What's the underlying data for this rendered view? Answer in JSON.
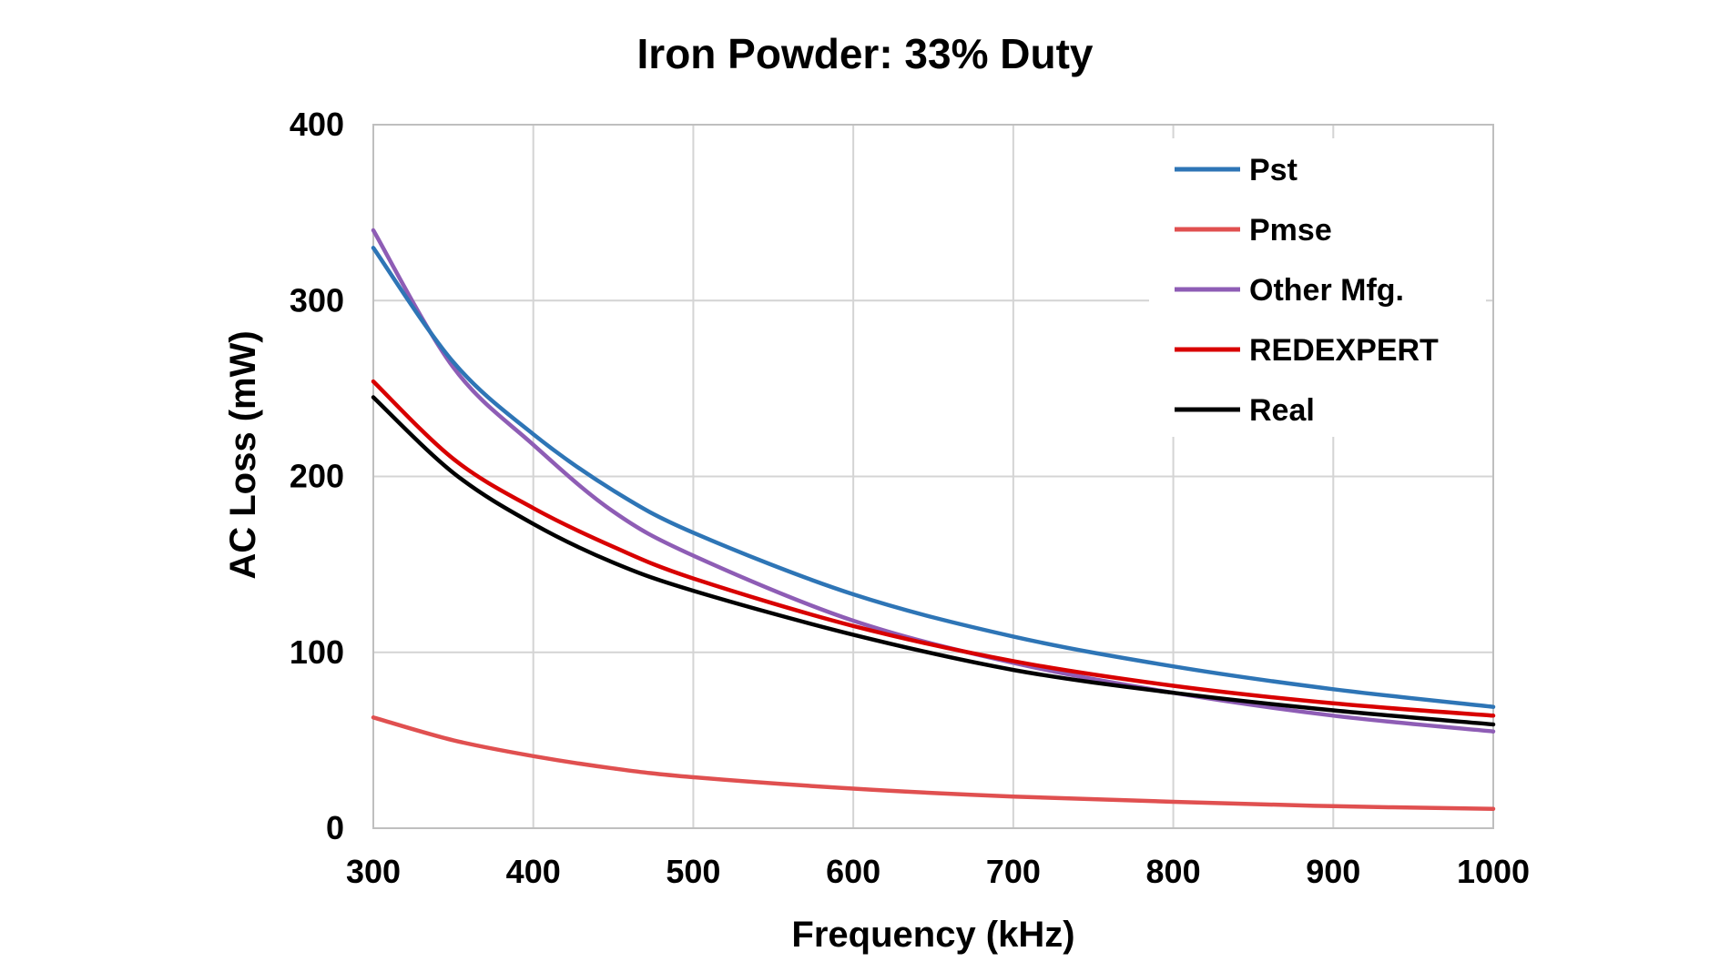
{
  "chart_data": {
    "type": "line",
    "title": "Iron Powder: 33% Duty",
    "xlabel": "Frequency (kHz)",
    "ylabel": "AC Loss (mW)",
    "xlim": [
      300,
      1000
    ],
    "ylim": [
      0,
      400
    ],
    "x_ticks": [
      "300",
      "400",
      "500",
      "600",
      "700",
      "800",
      "900",
      "1000"
    ],
    "y_ticks": [
      "0",
      "100",
      "200",
      "300",
      "400"
    ],
    "grid": true,
    "legend_position": "top-right",
    "x": [
      300,
      350,
      400,
      450,
      500,
      600,
      700,
      800,
      900,
      1000
    ],
    "series": [
      {
        "name": "Pst",
        "color": "#2E75B6",
        "values": [
          330,
          265,
          224,
          192,
          168,
          133,
          109,
          92,
          79,
          69
        ]
      },
      {
        "name": "Pmse",
        "color": "#E05050",
        "values": [
          63,
          50,
          41,
          34,
          29,
          22.5,
          18,
          15,
          12.5,
          11
        ]
      },
      {
        "name": "Other Mfg.",
        "color": "#8E5DB5",
        "values": [
          340,
          262,
          218,
          180,
          155,
          118,
          94,
          77,
          64,
          55
        ]
      },
      {
        "name": "REDEXPERT",
        "color": "#D80000",
        "values": [
          254,
          210,
          182,
          160,
          142,
          115,
          95,
          81,
          71,
          64
        ]
      },
      {
        "name": "Real",
        "color": "#000000",
        "values": [
          245,
          202,
          173,
          151,
          135,
          110,
          90,
          77,
          67,
          59
        ]
      }
    ]
  }
}
